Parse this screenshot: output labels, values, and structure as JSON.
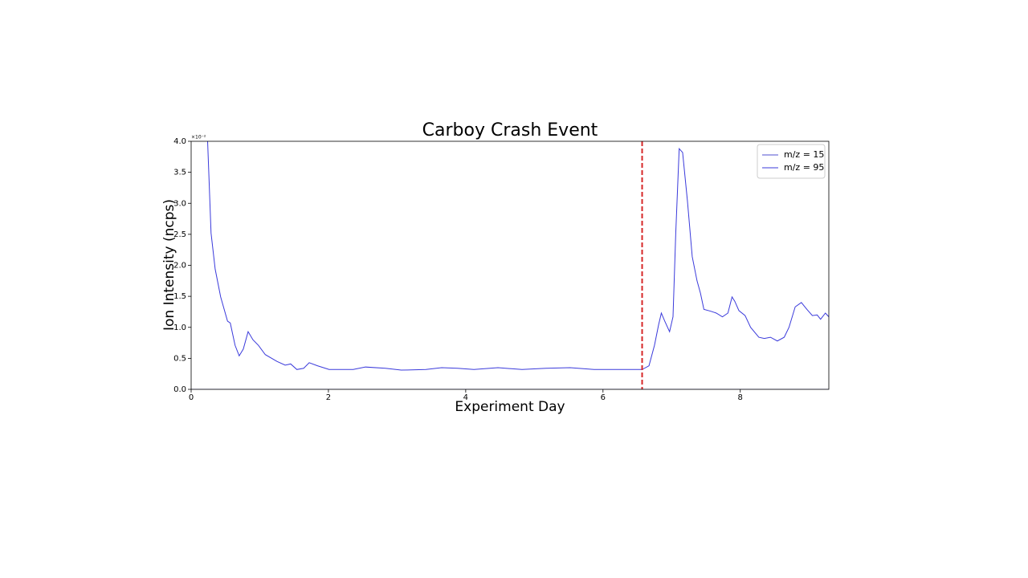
{
  "chart_data": {
    "type": "line",
    "title": "Carboy Crash Event",
    "xlabel": "Experiment Day",
    "ylabel": "Ion Intensity (ncps)",
    "y_offset_text": "×10⁻²",
    "xlim": [
      0,
      9.29
    ],
    "ylim": [
      0,
      4.0
    ],
    "xticks": [
      0,
      2,
      4,
      6,
      8
    ],
    "yticks": [
      {
        "value": 0,
        "label": "0.0"
      },
      {
        "value": 0.5,
        "label": "0.5"
      },
      {
        "value": 1,
        "label": "1.0"
      },
      {
        "value": 1.5,
        "label": "1.5"
      },
      {
        "value": 2,
        "label": "2.0"
      },
      {
        "value": 2.5,
        "label": "2.5"
      },
      {
        "value": 3,
        "label": "3.0"
      },
      {
        "value": 3.5,
        "label": "3.5"
      },
      {
        "value": 4,
        "label": "4.0"
      }
    ],
    "grid": false,
    "legend": "upper right",
    "vline": {
      "x": 6.57,
      "color": "#d62728"
    },
    "series": [
      {
        "name": "m/z = 15",
        "color": "#4f4fd0",
        "x": [
          0,
          9.29
        ],
        "values": [
          0,
          0
        ]
      },
      {
        "name": "m/z = 95",
        "color": "#3a3adb",
        "x": [
          0.24,
          0.29,
          0.35,
          0.43,
          0.53,
          0.57,
          0.64,
          0.7,
          0.76,
          0.83,
          0.9,
          0.98,
          1.08,
          1.25,
          1.37,
          1.45,
          1.54,
          1.64,
          1.72,
          1.84,
          2.01,
          2.36,
          2.54,
          2.83,
          3.06,
          3.42,
          3.65,
          3.88,
          4.12,
          4.47,
          4.82,
          5.17,
          5.52,
          5.87,
          6.34,
          6.57,
          6.67,
          6.75,
          6.81,
          6.85,
          6.9,
          6.97,
          7.02,
          7.06,
          7.11,
          7.16,
          7.23,
          7.3,
          7.37,
          7.42,
          7.47,
          7.57,
          7.65,
          7.74,
          7.82,
          7.88,
          7.92,
          7.98,
          8.07,
          8.15,
          8.27,
          8.35,
          8.44,
          8.54,
          8.64,
          8.71,
          8.8,
          8.89,
          8.97,
          9.05,
          9.12,
          9.17,
          9.24,
          9.29
        ],
        "values": [
          4.0,
          2.52,
          1.94,
          1.49,
          1.1,
          1.07,
          0.71,
          0.54,
          0.65,
          0.93,
          0.8,
          0.71,
          0.56,
          0.45,
          0.39,
          0.41,
          0.32,
          0.34,
          0.43,
          0.38,
          0.32,
          0.32,
          0.36,
          0.34,
          0.31,
          0.32,
          0.35,
          0.34,
          0.32,
          0.35,
          0.32,
          0.34,
          0.35,
          0.32,
          0.32,
          0.32,
          0.38,
          0.71,
          1.04,
          1.23,
          1.1,
          0.93,
          1.17,
          2.52,
          3.88,
          3.82,
          3.04,
          2.14,
          1.75,
          1.55,
          1.29,
          1.26,
          1.23,
          1.17,
          1.23,
          1.49,
          1.42,
          1.27,
          1.19,
          1.0,
          0.84,
          0.82,
          0.84,
          0.78,
          0.84,
          1.0,
          1.33,
          1.4,
          1.29,
          1.19,
          1.2,
          1.13,
          1.23,
          1.17
        ]
      }
    ]
  }
}
